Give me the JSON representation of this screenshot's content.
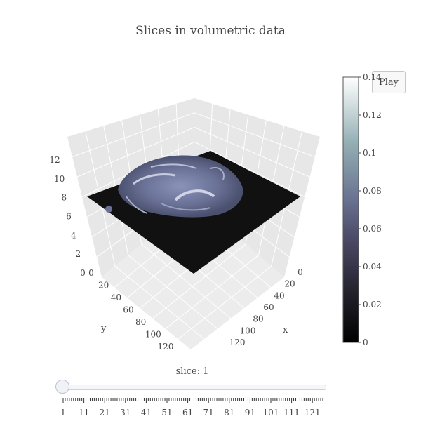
{
  "chart_data": {
    "type": "heatmap",
    "title": "Slices in volumetric data",
    "scene": {
      "x_ticks": [
        "0",
        "20",
        "40",
        "60",
        "80",
        "100",
        "120"
      ],
      "y_ticks": [
        "0",
        "20",
        "40",
        "60",
        "80",
        "100",
        "120"
      ],
      "z_ticks": [
        "0",
        "2",
        "4",
        "6",
        "8",
        "10",
        "12"
      ],
      "x_label": "x",
      "y_label": "y"
    },
    "colorbar": {
      "min": 0,
      "max": 0.14,
      "ticks": [
        "0",
        "0.02",
        "0.04",
        "0.06",
        "0.08",
        "0.1",
        "0.12",
        "0.14"
      ],
      "colorscale": "bone"
    },
    "slider": {
      "prefix": "slice: ",
      "current": "1",
      "labels": [
        "1",
        "11",
        "21",
        "31",
        "41",
        "51",
        "61",
        "71",
        "81",
        "91",
        "101",
        "111",
        "121"
      ]
    }
  },
  "controls": {
    "play_label": "Play"
  }
}
